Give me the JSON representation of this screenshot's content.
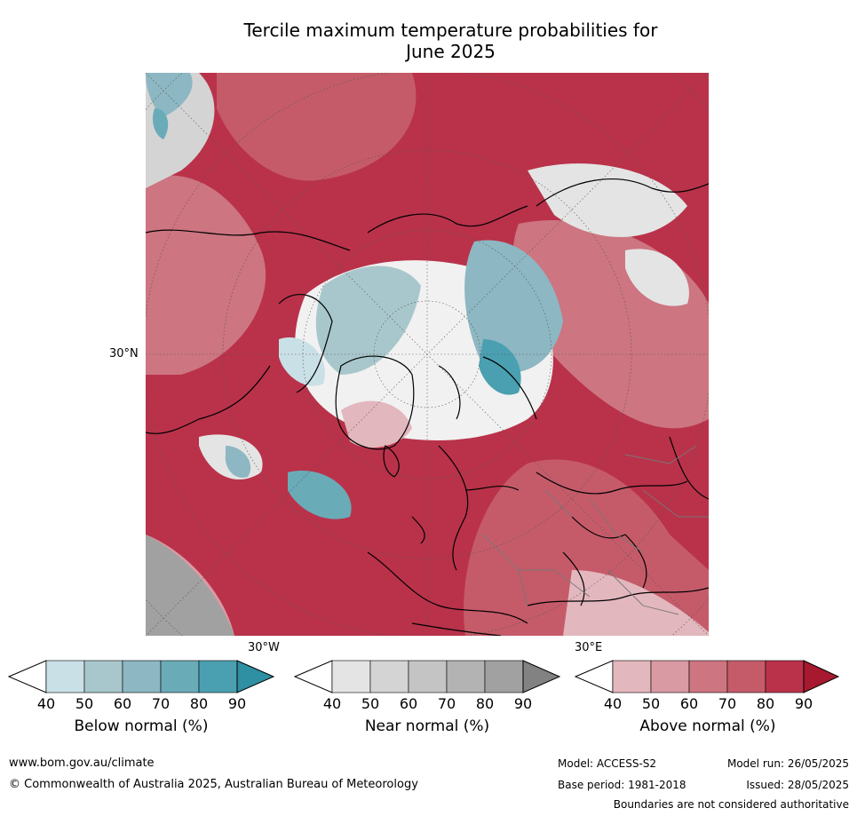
{
  "title_line1": "Tercile maximum temperature probabilities for",
  "title_line2": "June 2025",
  "map": {
    "lat_label": "30°N",
    "lon_label_left": "30°W",
    "lon_label_right": "30°E"
  },
  "colorbars": [
    {
      "label": "Below normal (%)",
      "ticks": [
        "40",
        "50",
        "60",
        "70",
        "80",
        "90"
      ],
      "colors": [
        "#c9e0e6",
        "#a8c7cc",
        "#8db7c2",
        "#6aabb8",
        "#4aa0b1",
        "#2f8fa3"
      ]
    },
    {
      "label": "Near normal (%)",
      "ticks": [
        "40",
        "50",
        "60",
        "70",
        "80",
        "90"
      ],
      "colors": [
        "#e4e4e4",
        "#d4d4d4",
        "#c4c4c4",
        "#b3b3b3",
        "#a1a1a1",
        "#828282"
      ]
    },
    {
      "label": "Above normal (%)",
      "ticks": [
        "40",
        "50",
        "60",
        "70",
        "80",
        "90"
      ],
      "colors": [
        "#e3b7be",
        "#d99aa3",
        "#cd7581",
        "#c55b69",
        "#b9324a",
        "#a6192e"
      ]
    }
  ],
  "footer": {
    "website": "www.bom.gov.au/climate",
    "copyright": "© Commonwealth of Australia 2025, Australian Bureau of Meteorology",
    "model": "Model: ACCESS-S2",
    "base_period": "Base period: 1981-2018",
    "model_run": "Model run: 26/05/2025",
    "issued": "Issued: 28/05/2025",
    "disclaimer": "Boundaries are not considered authoritative"
  }
}
